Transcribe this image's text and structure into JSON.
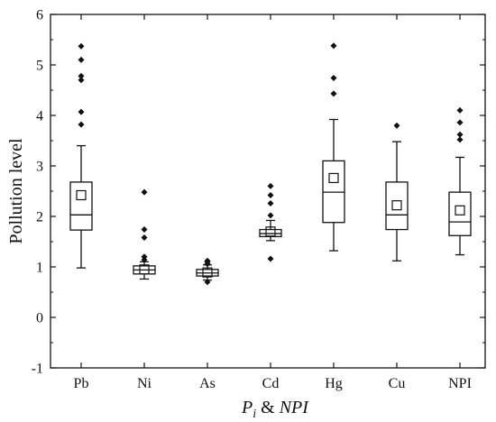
{
  "chart_data": {
    "type": "box",
    "ylabel": "Pollution level",
    "xlabel": {
      "parts": [
        {
          "text": "P",
          "style": "italic"
        },
        {
          "text": "i",
          "style": "italic-subscript"
        },
        {
          "text": " & ",
          "style": "normal"
        },
        {
          "text": "NPI",
          "style": "italic"
        }
      ]
    },
    "ylim": [
      -1,
      6
    ],
    "yticks": [
      -1,
      0,
      1,
      2,
      3,
      4,
      5,
      6
    ],
    "ytick_labels": [
      "-1",
      "0",
      "1",
      "2",
      "3",
      "4",
      "5",
      "6"
    ],
    "categories": [
      "Pb",
      "Ni",
      "As",
      "Cd",
      "Hg",
      "Cu",
      "NPI"
    ],
    "boxes": [
      {
        "name": "Pb",
        "whisker_low": 0.98,
        "q1": 1.73,
        "median": 2.03,
        "q3": 2.68,
        "whisker_high": 3.4,
        "mean": 2.42,
        "outliers": [
          3.82,
          4.07,
          4.7,
          4.78,
          5.1,
          5.37
        ]
      },
      {
        "name": "Ni",
        "whisker_low": 0.76,
        "q1": 0.86,
        "median": 0.94,
        "q3": 1.02,
        "whisker_high": 1.1,
        "mean": 0.95,
        "outliers": [
          1.14,
          1.2,
          1.58,
          1.74,
          2.48
        ]
      },
      {
        "name": "As",
        "whisker_low": 0.74,
        "q1": 0.82,
        "median": 0.88,
        "q3": 0.95,
        "whisker_high": 1.04,
        "mean": 0.89,
        "outliers": [
          0.7,
          1.06,
          1.1,
          1.12
        ]
      },
      {
        "name": "Cd",
        "whisker_low": 1.52,
        "q1": 1.6,
        "median": 1.66,
        "q3": 1.74,
        "whisker_high": 1.92,
        "mean": 1.7,
        "outliers": [
          1.16,
          2.02,
          2.26,
          2.42,
          2.6
        ]
      },
      {
        "name": "Hg",
        "whisker_low": 1.32,
        "q1": 1.88,
        "median": 2.48,
        "q3": 3.1,
        "whisker_high": 3.92,
        "mean": 2.76,
        "outliers": [
          4.43,
          4.74,
          5.38
        ]
      },
      {
        "name": "Cu",
        "whisker_low": 1.12,
        "q1": 1.74,
        "median": 2.03,
        "q3": 2.68,
        "whisker_high": 3.48,
        "mean": 2.22,
        "outliers": [
          3.8
        ]
      },
      {
        "name": "NPI",
        "whisker_low": 1.24,
        "q1": 1.62,
        "median": 1.89,
        "q3": 2.48,
        "whisker_high": 3.17,
        "mean": 2.12,
        "outliers": [
          3.52,
          3.62,
          3.86,
          4.1
        ]
      }
    ],
    "grid": false,
    "colors": {
      "stroke": "#111111",
      "outlier": "#111111"
    }
  }
}
